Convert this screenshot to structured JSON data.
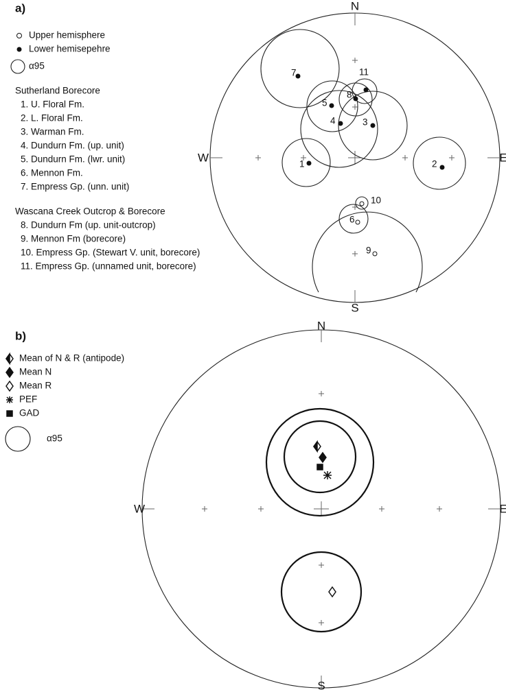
{
  "panel_a": {
    "label": "a)",
    "directions": {
      "N": "N",
      "S": "S",
      "W": "W",
      "E": "E"
    },
    "legend": [
      "Upper hemisphere",
      "Lower hemisepehre",
      "α95"
    ],
    "groups": [
      {
        "title": "Sutherland Borecore",
        "items": [
          "1. U. Floral Fm.",
          "2. L. Floral Fm.",
          "3. Warman Fm.",
          "4. Dundurn Fm. (up. unit)",
          "5. Dundurn Fm. (lwr. unit)",
          "6. Mennon Fm.",
          "7. Empress Gp. (unn. unit)"
        ]
      },
      {
        "title": "Wascana Creek Outcrop & Borecore",
        "items": [
          "8. Dundurn Fm (up. unit-outcrop)",
          "9. Mennon Fm (borecore)",
          "10. Empress Gp. (Stewart V. unit, borecore)",
          "11. Empress Gp. (unnamed unit, borecore)"
        ]
      }
    ],
    "point_labels": [
      "7",
      "11",
      "8",
      "5",
      "4",
      "3",
      "1",
      "2",
      "10",
      "6",
      "9"
    ]
  },
  "panel_b": {
    "label": "b)",
    "directions": {
      "N": "N",
      "S": "S",
      "W": "W",
      "E": "E"
    },
    "legend": [
      "Mean of N & R (antipode)",
      "Mean N",
      "Mean R",
      "PEF",
      "GAD",
      "α95"
    ]
  }
}
